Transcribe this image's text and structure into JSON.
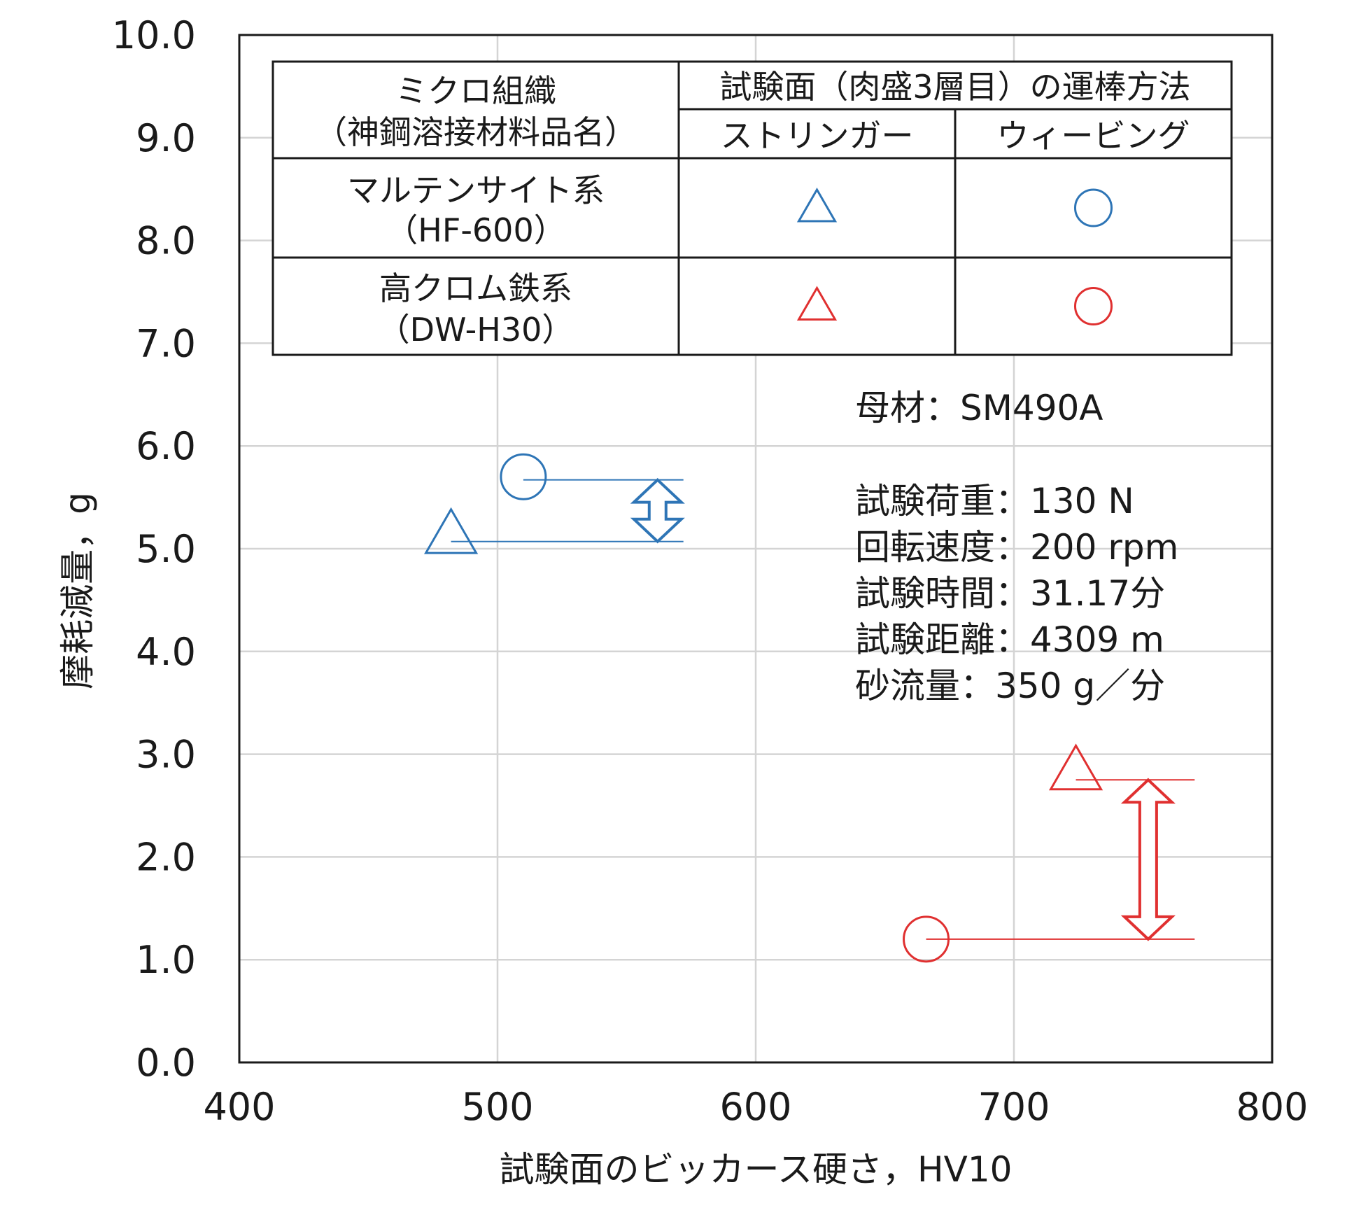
{
  "chart_data": {
    "type": "scatter",
    "xlabel": "試験面のビッカース硬さ，HV10",
    "ylabel": "摩耗減量，g",
    "xlim": [
      400,
      800
    ],
    "ylim": [
      0,
      10
    ],
    "x_ticks": [
      "400",
      "500",
      "600",
      "700",
      "800"
    ],
    "y_ticks": [
      "0.0",
      "1.0",
      "2.0",
      "3.0",
      "4.0",
      "5.0",
      "6.0",
      "7.0",
      "8.0",
      "9.0",
      "10.0"
    ],
    "grid": true,
    "series": [
      {
        "name": "マルテンサイト系（HF-600）ストリンガー",
        "marker": "triangle",
        "color": "#2e75b6",
        "points": [
          {
            "x": 482,
            "y": 5.1
          }
        ]
      },
      {
        "name": "マルテンサイト系（HF-600）ウィービング",
        "marker": "circle",
        "color": "#2e75b6",
        "points": [
          {
            "x": 510,
            "y": 5.7
          }
        ]
      },
      {
        "name": "高クロム鉄系（DW-H30）ストリンガー",
        "marker": "triangle",
        "color": "#e03030",
        "points": [
          {
            "x": 724,
            "y": 2.8
          }
        ]
      },
      {
        "name": "高クロム鉄系（DW-H30）ウィービング",
        "marker": "circle",
        "color": "#e03030",
        "points": [
          {
            "x": 666,
            "y": 1.2
          }
        ]
      }
    ],
    "reference_lines": [
      {
        "color": "#2e75b6",
        "y": 5.67,
        "x_from": 510,
        "x_to": 572
      },
      {
        "color": "#2e75b6",
        "y": 5.07,
        "x_from": 482,
        "x_to": 572
      },
      {
        "color": "#e03030",
        "y": 2.75,
        "x_from": 724,
        "x_to": 770
      },
      {
        "color": "#e03030",
        "y": 1.2,
        "x_from": 666,
        "x_to": 770
      }
    ],
    "difference_arrows": [
      {
        "color": "#2e75b6",
        "x": 562,
        "y_from": 5.07,
        "y_to": 5.67
      },
      {
        "color": "#e03030",
        "x": 752,
        "y_from": 1.2,
        "y_to": 2.75
      }
    ],
    "legend": {
      "placement": "top",
      "header_col1_line1": "ミクロ組織",
      "header_col1_line2": "（神鋼溶接材料品名）",
      "header_group": "試験面（肉盛3層目）の運棒方法",
      "header_stringer": "ストリンガー",
      "header_weaving": "ウィービング",
      "rows": [
        {
          "line1": "マルテンサイト系",
          "line2": "（HF-600）",
          "color": "#2e75b6"
        },
        {
          "line1": "高クロム鉄系",
          "line2": "（DW-H30）",
          "color": "#e03030"
        }
      ]
    },
    "annotations": {
      "base_material": "母材：SM490A",
      "conditions": [
        "試験荷重：130 N",
        "回転速度：200 rpm",
        "試験時間：31.17分",
        "試験距離：4309 m",
        "砂流量：350 g／分"
      ]
    }
  }
}
